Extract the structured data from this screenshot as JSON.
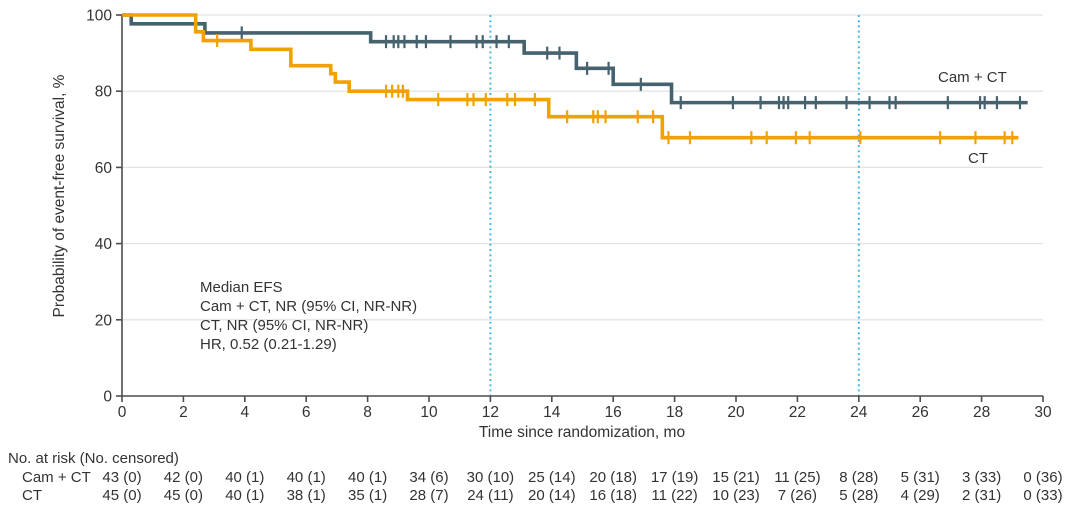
{
  "chart_data": {
    "type": "line",
    "subtype": "kaplan-meier-step",
    "title": "",
    "xlabel": "Time since randomization, mo",
    "ylabel": "Probability of event-free survival, %",
    "xlim": [
      0,
      30
    ],
    "ylim": [
      0,
      100
    ],
    "xticks": [
      0,
      2,
      4,
      6,
      8,
      10,
      12,
      14,
      16,
      18,
      20,
      22,
      24,
      26,
      28,
      30
    ],
    "yticks": [
      0,
      20,
      40,
      60,
      80,
      100
    ],
    "grid": "horizontal-only",
    "reference_lines_x": [
      12,
      24
    ],
    "reference_line_color": "#45b8e6",
    "gridline_color": "#e4e4e4",
    "axis_color": "#4d4d4d",
    "text_color": "#333333",
    "series": [
      {
        "name": "Cam + CT",
        "color": "#46626F",
        "steps": [
          [
            0,
            100
          ],
          [
            0.3,
            97.7
          ],
          [
            2.7,
            95.3
          ],
          [
            8.1,
            93.0
          ],
          [
            13.1,
            90.0
          ],
          [
            14.8,
            86.0
          ],
          [
            16.0,
            81.8
          ],
          [
            17.9,
            77.0
          ]
        ],
        "end_x": 29.5,
        "censors": [
          [
            3.9,
            95.3
          ],
          [
            8.6,
            93.0
          ],
          [
            8.85,
            93.0
          ],
          [
            9.0,
            93.0
          ],
          [
            9.2,
            93.0
          ],
          [
            9.6,
            93.0
          ],
          [
            9.9,
            93.0
          ],
          [
            10.7,
            93.0
          ],
          [
            11.55,
            93.0
          ],
          [
            11.75,
            93.0
          ],
          [
            12.2,
            93.0
          ],
          [
            12.6,
            93.0
          ],
          [
            13.85,
            90.0
          ],
          [
            14.25,
            90.0
          ],
          [
            15.15,
            86.0
          ],
          [
            15.85,
            86.0
          ],
          [
            16.9,
            81.8
          ],
          [
            18.2,
            77.0
          ],
          [
            19.9,
            77.0
          ],
          [
            20.8,
            77.0
          ],
          [
            21.4,
            77.0
          ],
          [
            21.55,
            77.0
          ],
          [
            21.7,
            77.0
          ],
          [
            22.25,
            77.0
          ],
          [
            22.6,
            77.0
          ],
          [
            23.6,
            77.0
          ],
          [
            24.35,
            77.0
          ],
          [
            25.0,
            77.0
          ],
          [
            25.2,
            77.0
          ],
          [
            26.9,
            77.0
          ],
          [
            27.95,
            77.0
          ],
          [
            28.1,
            77.0
          ],
          [
            28.5,
            77.0
          ],
          [
            29.25,
            77.0
          ]
        ]
      },
      {
        "name": "CT",
        "color": "#F2A104",
        "steps": [
          [
            0,
            100
          ],
          [
            2.4,
            95.6
          ],
          [
            2.65,
            93.3
          ],
          [
            4.2,
            91.0
          ],
          [
            5.5,
            86.7
          ],
          [
            6.8,
            84.6
          ],
          [
            6.95,
            82.4
          ],
          [
            7.4,
            80.0
          ],
          [
            9.3,
            77.8
          ],
          [
            13.9,
            73.3
          ],
          [
            17.6,
            67.8
          ]
        ],
        "end_x": 29.2,
        "censors": [
          [
            3.1,
            93.3
          ],
          [
            8.6,
            80.0
          ],
          [
            8.8,
            80.0
          ],
          [
            9.0,
            80.0
          ],
          [
            9.15,
            80.0
          ],
          [
            10.3,
            77.8
          ],
          [
            11.25,
            77.8
          ],
          [
            11.45,
            77.8
          ],
          [
            11.85,
            77.8
          ],
          [
            12.55,
            77.8
          ],
          [
            12.8,
            77.8
          ],
          [
            13.45,
            77.8
          ],
          [
            14.5,
            73.3
          ],
          [
            15.35,
            73.3
          ],
          [
            15.5,
            73.3
          ],
          [
            15.75,
            73.3
          ],
          [
            16.8,
            73.3
          ],
          [
            17.3,
            73.3
          ],
          [
            17.8,
            67.8
          ],
          [
            18.5,
            67.8
          ],
          [
            20.5,
            67.8
          ],
          [
            21.0,
            67.8
          ],
          [
            21.95,
            67.8
          ],
          [
            22.4,
            67.8
          ],
          [
            24.05,
            67.8
          ],
          [
            26.65,
            67.8
          ],
          [
            27.8,
            67.8
          ],
          [
            28.75,
            67.8
          ],
          [
            29.0,
            67.8
          ]
        ]
      }
    ],
    "annotation": {
      "lines": [
        "Median EFS",
        "Cam + CT, NR (95% CI, NR-NR)",
        "CT, NR (95% CI, NR-NR)",
        "HR, 0.52 (0.21-1.29)"
      ]
    }
  },
  "risk_table": {
    "header": "No. at risk (No. censored)",
    "times": [
      0,
      2,
      4,
      6,
      8,
      10,
      12,
      14,
      16,
      18,
      20,
      22,
      24,
      26,
      28,
      30
    ],
    "rows": [
      {
        "label": "Cam + CT",
        "values": [
          "43 (0)",
          "42 (0)",
          "40 (1)",
          "40 (1)",
          "40 (1)",
          "34 (6)",
          "30 (10)",
          "25 (14)",
          "20 (18)",
          "17 (19)",
          "15 (21)",
          "11 (25)",
          "8 (28)",
          "5 (31)",
          "3 (33)",
          "0 (36)"
        ]
      },
      {
        "label": "CT",
        "values": [
          "45 (0)",
          "45 (0)",
          "40 (1)",
          "38 (1)",
          "35 (1)",
          "28 (7)",
          "24 (11)",
          "20 (14)",
          "16 (18)",
          "11 (22)",
          "10 (23)",
          "7 (26)",
          "5 (28)",
          "4 (29)",
          "2 (31)",
          "0 (33)"
        ]
      }
    ]
  }
}
